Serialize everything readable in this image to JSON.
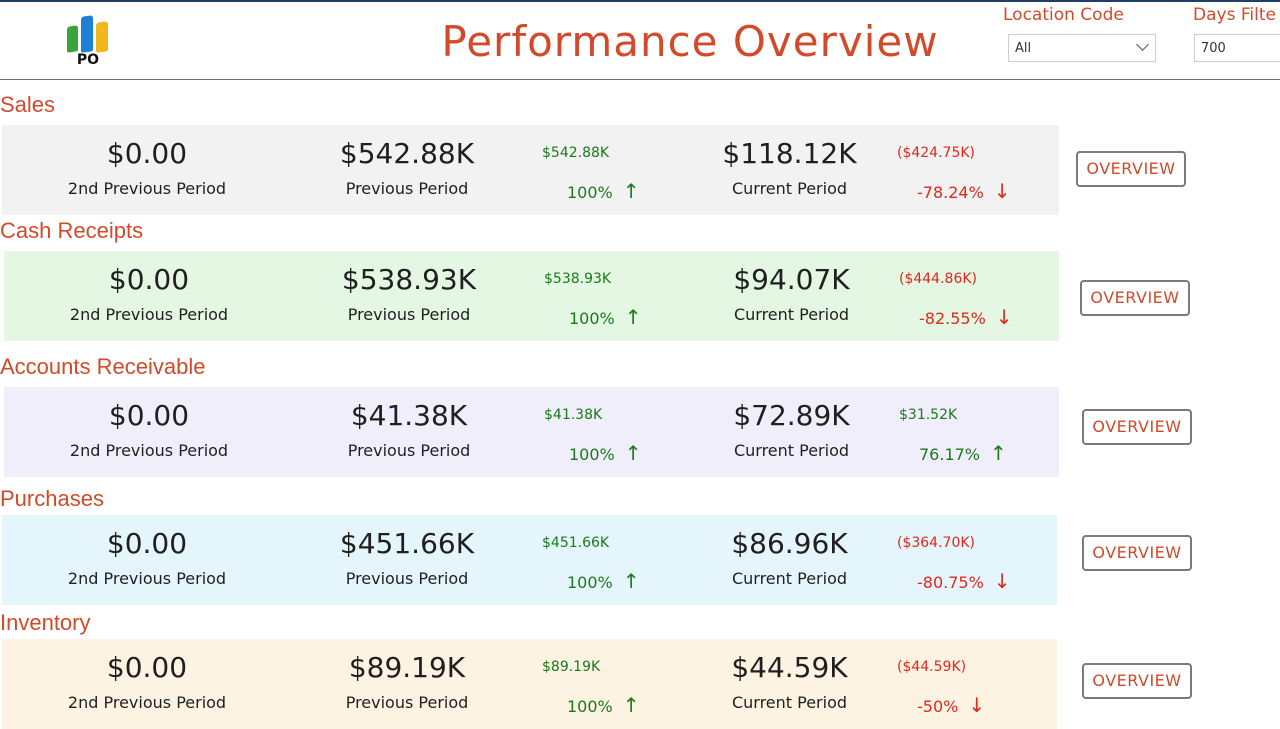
{
  "header": {
    "logo_text": "PO",
    "title": "Performance Overview",
    "location_label": "Location Code",
    "location_value": "All",
    "days_label": "Days Filte",
    "days_value": "700"
  },
  "colors": {
    "accent": "#d24a2a",
    "positive": "#1a7a1a",
    "negative": "#e0281e"
  },
  "sections": [
    {
      "title": "Sales",
      "band_color": "#f2f2f2",
      "second_prev_value": "$0.00",
      "second_prev_label": "2nd Previous Period",
      "prev_value": "$542.88K",
      "prev_label": "Previous Period",
      "prev_delta_amount": "$542.88K",
      "prev_delta_pct": "100%",
      "prev_direction": "up",
      "current_value": "$118.12K",
      "current_label": "Current Period",
      "current_delta_amount": "($424.75K)",
      "current_delta_pct": "-78.24%",
      "current_direction": "down",
      "button_label": "OVERVIEW"
    },
    {
      "title": "Cash Receipts",
      "band_color": "#e3f7e3",
      "second_prev_value": "$0.00",
      "second_prev_label": "2nd Previous Period",
      "prev_value": "$538.93K",
      "prev_label": "Previous Period",
      "prev_delta_amount": "$538.93K",
      "prev_delta_pct": "100%",
      "prev_direction": "up",
      "current_value": "$94.07K",
      "current_label": "Current Period",
      "current_delta_amount": "($444.86K)",
      "current_delta_pct": "-82.55%",
      "current_direction": "down",
      "button_label": "OVERVIEW"
    },
    {
      "title": "Accounts Receivable",
      "band_color": "#f1eefb",
      "second_prev_value": "$0.00",
      "second_prev_label": "2nd Previous Period",
      "prev_value": "$41.38K",
      "prev_label": "Previous Period",
      "prev_delta_amount": "$41.38K",
      "prev_delta_pct": "100%",
      "prev_direction": "up",
      "current_value": "$72.89K",
      "current_label": "Current Period",
      "current_delta_amount": "$31.52K",
      "current_delta_pct": "76.17%",
      "current_direction": "up",
      "button_label": "OVERVIEW"
    },
    {
      "title": "Purchases",
      "band_color": "#e4f6fc",
      "second_prev_value": "$0.00",
      "second_prev_label": "2nd Previous Period",
      "prev_value": "$451.66K",
      "prev_label": "Previous Period",
      "prev_delta_amount": "$451.66K",
      "prev_delta_pct": "100%",
      "prev_direction": "up",
      "current_value": "$86.96K",
      "current_label": "Current Period",
      "current_delta_amount": "($364.70K)",
      "current_delta_pct": "-80.75%",
      "current_direction": "down",
      "button_label": "OVERVIEW"
    },
    {
      "title": "Inventory",
      "band_color": "#fdf3e2",
      "second_prev_value": "$0.00",
      "second_prev_label": "2nd Previous Period",
      "prev_value": "$89.19K",
      "prev_label": "Previous Period",
      "prev_delta_amount": "$89.19K",
      "prev_delta_pct": "100%",
      "prev_direction": "up",
      "current_value": "$44.59K",
      "current_label": "Current Period",
      "current_delta_amount": "($44.59K)",
      "current_delta_pct": "-50%",
      "current_direction": "down",
      "button_label": "OVERVIEW"
    }
  ]
}
